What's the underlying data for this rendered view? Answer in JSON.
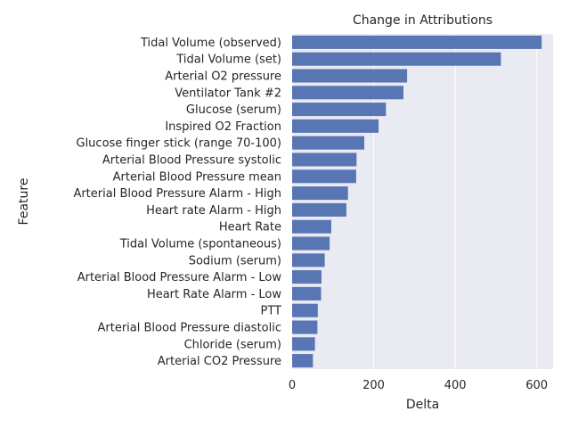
{
  "chart_data": {
    "type": "bar",
    "orientation": "horizontal",
    "title": "Change in Attributions",
    "xlabel": "Delta",
    "ylabel": "Feature",
    "xlim": [
      0,
      640
    ],
    "xticks": [
      0,
      200,
      400,
      600
    ],
    "grid": true,
    "bar_color": "#5875b4",
    "background_color": "#eaeaf2",
    "categories": [
      "Tidal Volume (observed)",
      "Tidal Volume (set)",
      "Arterial O2 pressure",
      "Ventilator Tank #2",
      "Glucose (serum)",
      "Inspired O2 Fraction",
      "Glucose finger stick (range 70-100)",
      "Arterial Blood Pressure systolic",
      "Arterial Blood Pressure mean",
      "Arterial Blood Pressure Alarm - High",
      "Heart rate Alarm - High",
      "Heart Rate",
      "Tidal Volume (spontaneous)",
      "Sodium (serum)",
      "Arterial Blood Pressure Alarm - Low",
      "Heart Rate Alarm - Low",
      "PTT",
      "Arterial Blood Pressure diastolic",
      "Chloride (serum)",
      "Arterial CO2 Pressure"
    ],
    "values": [
      612,
      512,
      282,
      273,
      230,
      212,
      177,
      158,
      157,
      137,
      133,
      96,
      92,
      80,
      72,
      71,
      63,
      62,
      56,
      51
    ]
  }
}
